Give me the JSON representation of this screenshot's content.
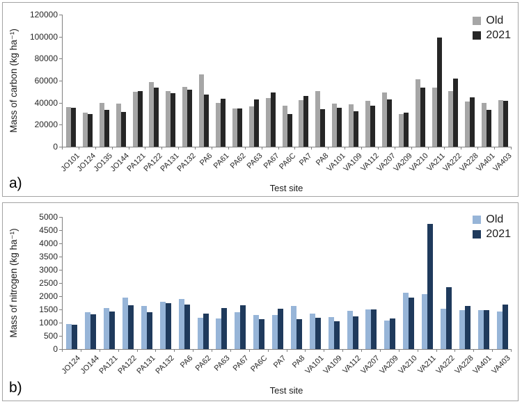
{
  "figure": {
    "background": "#ffffff",
    "panel_border_color": "#a3a3a3",
    "axis_color": "#7f7f7f"
  },
  "chart_data": [
    {
      "type": "bar",
      "panel_label": "a)",
      "title": "",
      "xlabel": "Test site",
      "ylabel": "Mass of carbon (kg ha⁻¹)",
      "ylim": [
        0,
        120000
      ],
      "ytick_step": 20000,
      "ytick_labels": [
        "0",
        "20000",
        "40000",
        "60000",
        "80000",
        "100000",
        "120000"
      ],
      "grid": false,
      "legend_position": "top-right",
      "categories": [
        "JO101",
        "JO124",
        "JO135",
        "JO144",
        "PA121",
        "PA122",
        "PA131",
        "PA132",
        "PA6",
        "PA61",
        "PA62",
        "PA63",
        "PA67",
        "PA6C",
        "PA7",
        "PA8",
        "VA101",
        "VA109",
        "VA112",
        "VA207",
        "VA209",
        "VA210",
        "VA211",
        "VA222",
        "VA228",
        "VA401",
        "VA403"
      ],
      "series": [
        {
          "name": "Old",
          "color": "#a6a6a6",
          "values": [
            36000,
            31000,
            40000,
            39000,
            50000,
            59000,
            50500,
            54500,
            65500,
            39500,
            34500,
            36500,
            44000,
            37500,
            42500,
            50500,
            39000,
            38500,
            41500,
            49000,
            29500,
            61000,
            54000,
            50500,
            41000,
            39500,
            42500
          ]
        },
        {
          "name": "2021",
          "color": "#262626",
          "values": [
            35500,
            30000,
            33500,
            31500,
            50500,
            54000,
            48500,
            52000,
            47500,
            43500,
            35000,
            43000,
            49500,
            29500,
            46000,
            34000,
            35500,
            32000,
            37500,
            43000,
            31000,
            54000,
            99000,
            62000,
            45000,
            33500,
            41500
          ]
        }
      ]
    },
    {
      "type": "bar",
      "panel_label": "b)",
      "title": "",
      "xlabel": "Test site",
      "ylabel": "Mass of nitrogen (kg ha⁻¹)",
      "ylim": [
        0,
        5000
      ],
      "ytick_step": 500,
      "ytick_labels": [
        "0",
        "500",
        "1000",
        "1500",
        "2000",
        "2500",
        "3000",
        "3500",
        "4000",
        "4500",
        "5000"
      ],
      "grid": false,
      "legend_position": "top-right",
      "categories": [
        "JO124",
        "JO144",
        "PA121",
        "PA122",
        "PA131",
        "PA132",
        "PA6",
        "PA62",
        "PA63",
        "PA67",
        "PA6C",
        "PA7",
        "PA8",
        "VA101",
        "VA109",
        "VA112",
        "VA207",
        "VA209",
        "VA210",
        "VA211",
        "VA222",
        "VA228",
        "VA401",
        "VA403"
      ],
      "series": [
        {
          "name": "Old",
          "color": "#97b5d8",
          "values": [
            950,
            1390,
            1560,
            1950,
            1620,
            1800,
            1890,
            1180,
            1150,
            1390,
            1290,
            1300,
            1630,
            1340,
            1210,
            1450,
            1510,
            1070,
            2120,
            2070,
            1520,
            1470,
            1470,
            1430
          ]
        },
        {
          "name": "2021",
          "color": "#1f3a5c",
          "values": [
            920,
            1320,
            1410,
            1660,
            1390,
            1750,
            1680,
            1330,
            1540,
            1660,
            1120,
            1520,
            1120,
            1190,
            1060,
            1250,
            1490,
            1160,
            1950,
            4750,
            2330,
            1640,
            1470,
            1680
          ]
        }
      ]
    }
  ]
}
